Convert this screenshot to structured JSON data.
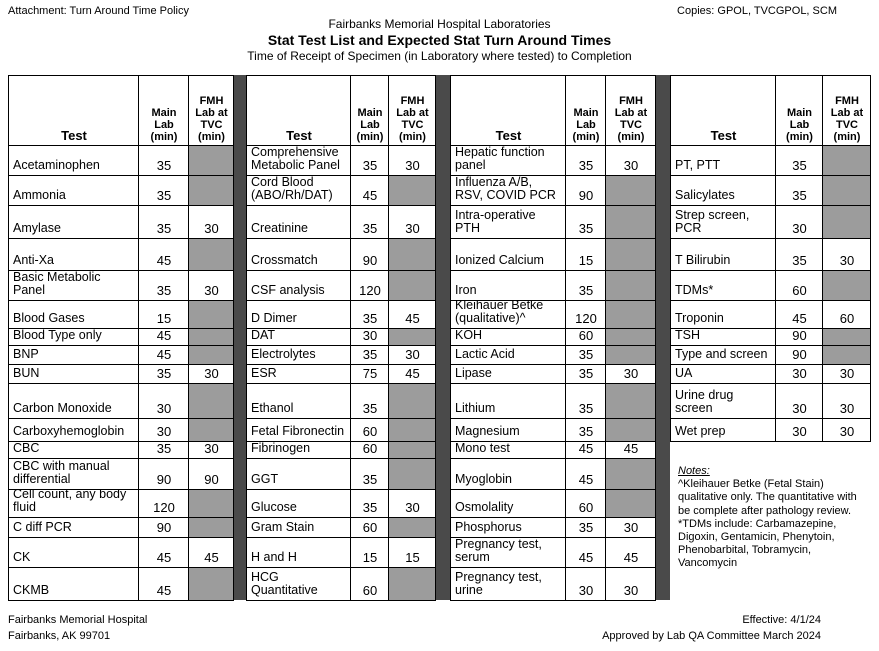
{
  "header": {
    "attachment": "Attachment:  Turn Around Time Policy",
    "copies": "Copies:  GPOL, TVCGPOL, SCM",
    "org": "Fairbanks Memorial Hospital Laboratories",
    "title": "Stat Test List and Expected Stat Turn Around Times",
    "subtitle": "Time of Receipt of Specimen (in Laboratory where tested) to Completion"
  },
  "table": {
    "columns": [
      "Test",
      "Main Lab (min)",
      "FMH Lab at TVC (min)"
    ],
    "groups": [
      [
        [
          "Acetaminophen",
          35,
          null
        ],
        [
          "Ammonia",
          35,
          null
        ],
        [
          "Amylase",
          35,
          30
        ],
        [
          "Anti-Xa",
          45,
          null
        ],
        [
          "Basic Metabolic Panel",
          35,
          30
        ],
        [
          "Blood Gases",
          15,
          null
        ],
        [
          "Blood Type  only",
          45,
          null
        ],
        [
          "BNP",
          45,
          null
        ],
        [
          "BUN",
          35,
          30
        ],
        [
          "Carbon Monoxide",
          30,
          null
        ],
        [
          "Carboxyhemoglobin",
          30,
          null
        ],
        [
          "CBC",
          35,
          30
        ],
        [
          "CBC with manual differential",
          90,
          90
        ],
        [
          "Cell count, any body fluid",
          120,
          null
        ],
        [
          "C diff PCR",
          90,
          null
        ],
        [
          "CK",
          45,
          45
        ],
        [
          "CKMB",
          45,
          null
        ]
      ],
      [
        [
          "Comprehensive Metabolic Panel",
          35,
          30
        ],
        [
          "Cord Blood (ABO/Rh/DAT)",
          45,
          null
        ],
        [
          "Creatinine",
          35,
          30
        ],
        [
          "Crossmatch",
          90,
          null
        ],
        [
          "CSF analysis",
          120,
          null
        ],
        [
          "D Dimer",
          35,
          45
        ],
        [
          "DAT",
          30,
          null
        ],
        [
          "Electrolytes",
          35,
          30
        ],
        [
          "ESR",
          75,
          45
        ],
        [
          "Ethanol",
          35,
          null
        ],
        [
          "Fetal Fibronectin",
          60,
          null
        ],
        [
          "Fibrinogen",
          60,
          null
        ],
        [
          "GGT",
          35,
          null
        ],
        [
          "Glucose",
          35,
          30
        ],
        [
          "Gram Stain",
          60,
          null
        ],
        [
          "H and H",
          15,
          15
        ],
        [
          "HCG Quantitative",
          60,
          null
        ]
      ],
      [
        [
          "Hepatic function panel",
          35,
          30
        ],
        [
          "Influenza A/B, RSV, COVID PCR",
          90,
          null
        ],
        [
          "Intra-operative PTH",
          35,
          null
        ],
        [
          "Ionized Calcium",
          15,
          null
        ],
        [
          "Iron",
          35,
          null
        ],
        [
          "Kleihauer Betke (qualitative)^",
          120,
          null
        ],
        [
          "KOH",
          60,
          null
        ],
        [
          "Lactic Acid",
          35,
          null
        ],
        [
          "Lipase",
          35,
          30
        ],
        [
          "Lithium",
          35,
          null
        ],
        [
          "Magnesium",
          35,
          null
        ],
        [
          "Mono test",
          45,
          45
        ],
        [
          "Myoglobin",
          45,
          null
        ],
        [
          "Osmolality",
          60,
          null
        ],
        [
          "Phosphorus",
          35,
          30
        ],
        [
          "Pregnancy test, serum",
          45,
          45
        ],
        [
          "Pregnancy test, urine",
          30,
          30
        ]
      ],
      [
        [
          "PT, PTT",
          35,
          null
        ],
        [
          "Salicylates",
          35,
          null
        ],
        [
          "Strep screen, PCR",
          30,
          null
        ],
        [
          "T Bilirubin",
          35,
          30
        ],
        [
          "TDMs*",
          60,
          null
        ],
        [
          "Troponin",
          45,
          60
        ],
        [
          "TSH",
          90,
          null
        ],
        [
          "Type and screen",
          90,
          null
        ],
        [
          "UA",
          30,
          30
        ],
        [
          "Urine drug screen",
          30,
          30
        ],
        [
          "Wet prep",
          30,
          30
        ]
      ]
    ]
  },
  "notes": {
    "title": "Notes:",
    "items": [
      "^Kleihauer Betke (Fetal Stain) qualitative only.  The quantitative with be complete after pathology review.",
      "*TDMs include: Carbamazepine, Digoxin, Gentamicin, Phenytoin, Phenobarbital, Tobramycin, Vancomycin"
    ]
  },
  "footer": {
    "left": [
      "Fairbanks Memorial Hospital",
      "Fairbanks, AK  99701"
    ],
    "right": [
      "Effective:  4/1/24",
      "Approved by Lab QA Committee March 2024"
    ]
  }
}
